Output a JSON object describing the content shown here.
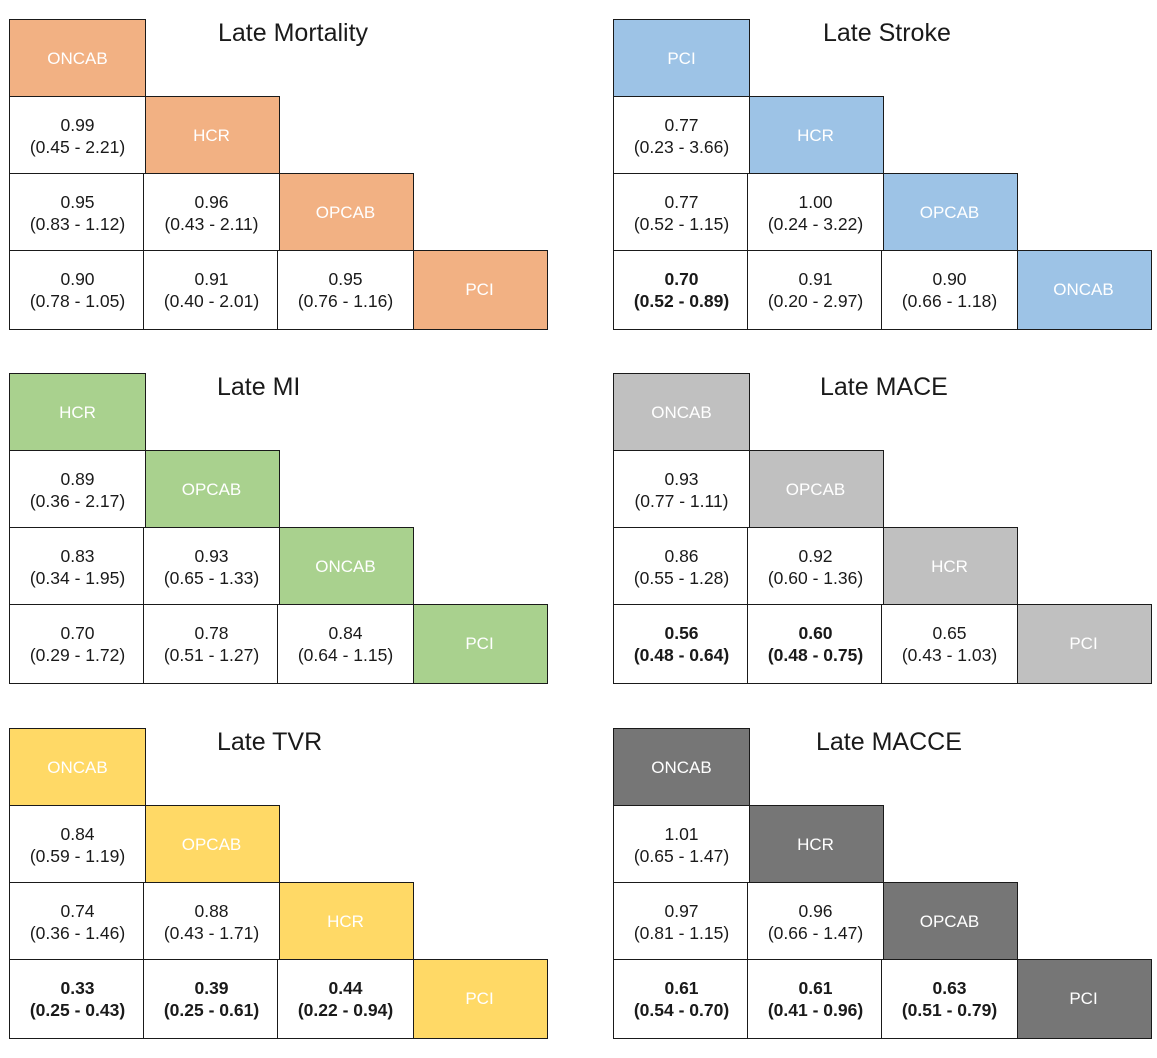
{
  "panels": [
    {
      "title": "Late Mortality",
      "color": "#f2b183",
      "labels": [
        "ONCAB",
        "HCR",
        "OPCAB",
        "PCI"
      ],
      "values": [
        [
          {
            "v": "0.99",
            "ci": "(0.45 - 2.21)",
            "bold": false
          }
        ],
        [
          {
            "v": "0.95",
            "ci": "(0.83 - 1.12)",
            "bold": false
          },
          {
            "v": "0.96",
            "ci": "(0.43 - 2.11)",
            "bold": false
          }
        ],
        [
          {
            "v": "0.90",
            "ci": "(0.78 - 1.05)",
            "bold": false
          },
          {
            "v": "0.91",
            "ci": "(0.40 - 2.01)",
            "bold": false
          },
          {
            "v": "0.95",
            "ci": "(0.76 - 1.16)",
            "bold": false
          }
        ]
      ]
    },
    {
      "title": "Late Stroke",
      "color": "#9dc3e6",
      "labels": [
        "PCI",
        "HCR",
        "OPCAB",
        "ONCAB"
      ],
      "values": [
        [
          {
            "v": "0.77",
            "ci": "(0.23 - 3.66)",
            "bold": false
          }
        ],
        [
          {
            "v": "0.77",
            "ci": "(0.52 - 1.15)",
            "bold": false
          },
          {
            "v": "1.00",
            "ci": "(0.24 - 3.22)",
            "bold": false
          }
        ],
        [
          {
            "v": "0.70",
            "ci": "(0.52 - 0.89)",
            "bold": true
          },
          {
            "v": "0.91",
            "ci": "(0.20 - 2.97)",
            "bold": false
          },
          {
            "v": "0.90",
            "ci": "(0.66 - 1.18)",
            "bold": false
          }
        ]
      ]
    },
    {
      "title": "Late MI",
      "color": "#a9d18e",
      "labels": [
        "HCR",
        "OPCAB",
        "ONCAB",
        "PCI"
      ],
      "values": [
        [
          {
            "v": "0.89",
            "ci": "(0.36 - 2.17)",
            "bold": false
          }
        ],
        [
          {
            "v": "0.83",
            "ci": "(0.34 - 1.95)",
            "bold": false
          },
          {
            "v": "0.93",
            "ci": "(0.65 - 1.33)",
            "bold": false
          }
        ],
        [
          {
            "v": "0.70",
            "ci": "(0.29 - 1.72)",
            "bold": false
          },
          {
            "v": "0.78",
            "ci": "(0.51 - 1.27)",
            "bold": false
          },
          {
            "v": "0.84",
            "ci": "(0.64 - 1.15)",
            "bold": false
          }
        ]
      ]
    },
    {
      "title": "Late MACE",
      "color": "#c0c0c0",
      "labels": [
        "ONCAB",
        "OPCAB",
        "HCR",
        "PCI"
      ],
      "values": [
        [
          {
            "v": "0.93",
            "ci": "(0.77 - 1.11)",
            "bold": false
          }
        ],
        [
          {
            "v": "0.86",
            "ci": "(0.55 - 1.28)",
            "bold": false
          },
          {
            "v": "0.92",
            "ci": "(0.60 - 1.36)",
            "bold": false
          }
        ],
        [
          {
            "v": "0.56",
            "ci": "(0.48 - 0.64)",
            "bold": true
          },
          {
            "v": "0.60",
            "ci": "(0.48 - 0.75)",
            "bold": true
          },
          {
            "v": "0.65",
            "ci": "(0.43 - 1.03)",
            "bold": false
          }
        ]
      ]
    },
    {
      "title": "Late TVR",
      "color": "#ffd966",
      "labels": [
        "ONCAB",
        "OPCAB",
        "HCR",
        "PCI"
      ],
      "values": [
        [
          {
            "v": "0.84",
            "ci": "(0.59 - 1.19)",
            "bold": false
          }
        ],
        [
          {
            "v": "0.74",
            "ci": "(0.36 - 1.46)",
            "bold": false
          },
          {
            "v": "0.88",
            "ci": "(0.43 - 1.71)",
            "bold": false
          }
        ],
        [
          {
            "v": "0.33",
            "ci": "(0.25 - 0.43)",
            "bold": true
          },
          {
            "v": "0.39",
            "ci": "(0.25 - 0.61)",
            "bold": true
          },
          {
            "v": "0.44",
            "ci": "(0.22 - 0.94)",
            "bold": true
          }
        ]
      ]
    },
    {
      "title": "Late MACCE",
      "color": "#767676",
      "labels": [
        "ONCAB",
        "HCR",
        "OPCAB",
        "PCI"
      ],
      "values": [
        [
          {
            "v": "1.01",
            "ci": "(0.65 - 1.47)",
            "bold": false
          }
        ],
        [
          {
            "v": "0.97",
            "ci": "(0.81 - 1.15)",
            "bold": false
          },
          {
            "v": "0.96",
            "ci": "(0.66 - 1.47)",
            "bold": false
          }
        ],
        [
          {
            "v": "0.61",
            "ci": "(0.54 - 0.70)",
            "bold": true
          },
          {
            "v": "0.61",
            "ci": "(0.41 - 0.96)",
            "bold": true
          },
          {
            "v": "0.63",
            "ci": "(0.51 - 0.79)",
            "bold": true
          }
        ]
      ]
    }
  ]
}
